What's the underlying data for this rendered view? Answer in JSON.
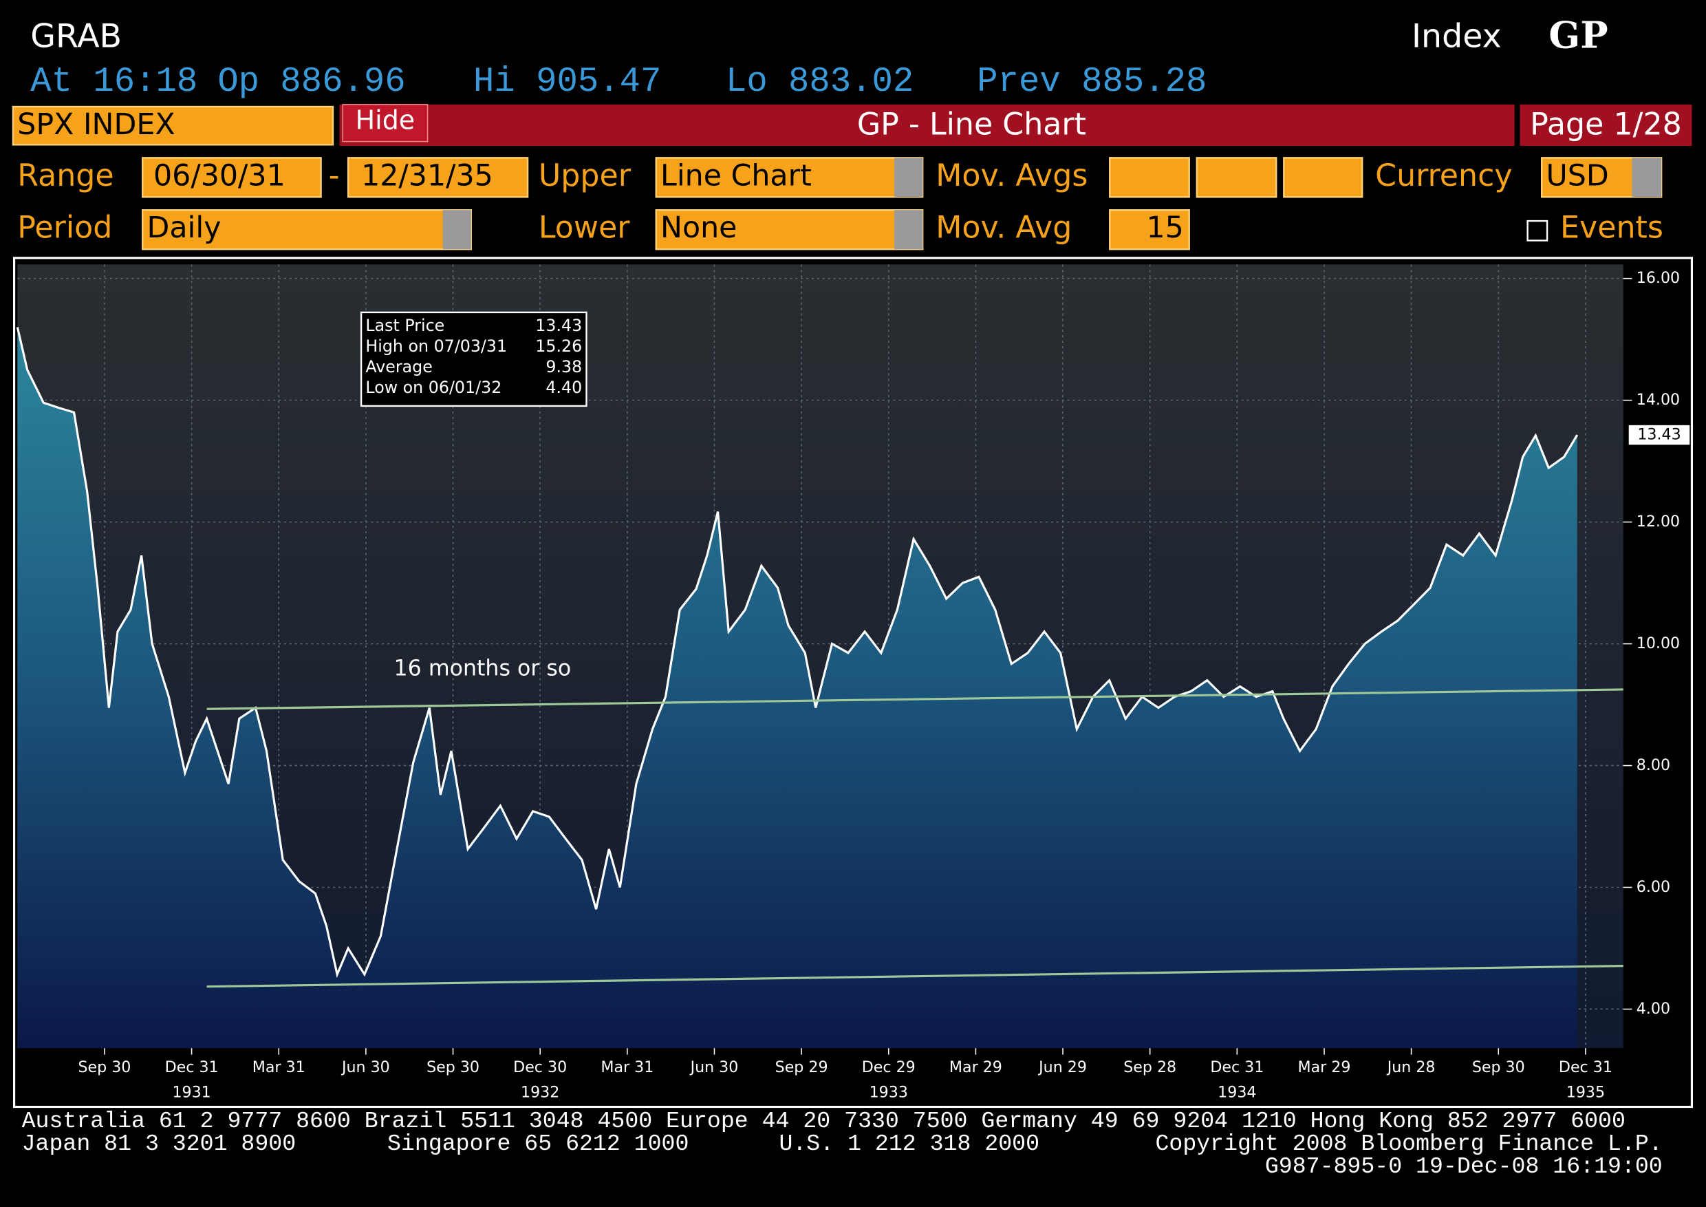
{
  "header": {
    "title": "GRAB",
    "index_label": "Index",
    "function": "GP",
    "quote": [
      "At 16:18",
      "Op 886.96",
      "Hi 905.47",
      "Lo 883.02",
      "Prev 885.28"
    ]
  },
  "toolbar": {
    "security": "SPX INDEX",
    "hide": "Hide",
    "title": "GP - Line Chart",
    "page": "Page 1/28"
  },
  "form": {
    "range_label": "Range",
    "range_start": "06/30/31",
    "range_sep": "-",
    "range_end": "12/31/35",
    "upper_label": "Upper",
    "upper": "Line Chart",
    "mov_avgs_label": "Mov. Avgs",
    "currency_label": "Currency",
    "currency": "USD",
    "period_label": "Period",
    "period": "Daily",
    "lower_label": "Lower",
    "lower": "None",
    "mov_avg_label": "Mov. Avg",
    "mov_avg": "15",
    "events": "Events"
  },
  "chart_data": {
    "type": "line",
    "color": "#ffffff",
    "x": [
      0,
      0.34,
      0.9,
      1.46,
      1.95,
      2.4,
      2.77,
      3.15,
      3.45,
      3.9,
      4.27,
      4.64,
      5.21,
      5.77,
      6.14,
      6.52,
      6.89,
      7.27,
      7.64,
      8.2,
      8.58,
      9.14,
      9.7,
      10.26,
      10.64,
      11.01,
      11.39,
      11.95,
      12.51,
      13.07,
      13.63,
      14.19,
      14.57,
      14.94,
      15.51,
      16.07,
      16.63,
      17.19,
      17.75,
      18.31,
      18.88,
      19.44,
      19.93,
      20.37,
      20.75,
      21.31,
      21.87,
      22.32,
      22.81,
      23.37,
      23.75,
      24.12,
      24.49,
      25.06,
      25.62,
      26.18,
      26.55,
      27.12,
      27.49,
      28.05,
      28.61,
      29.18,
      29.74,
      30.3,
      30.86,
      31.42,
      31.99,
      32.55,
      33.11,
      33.67,
      34.23,
      34.79,
      35.36,
      35.92,
      36.48,
      37.04,
      37.6,
      38.16,
      38.73,
      39.29,
      39.85,
      40.41,
      40.97,
      41.54,
      42.1,
      42.66,
      43.22,
      43.6,
      44.16,
      44.72,
      45.28,
      45.84,
      46.4,
      46.97,
      47.53,
      48.09,
      48.65,
      49.21,
      49.78,
      50.34,
      50.9,
      51.46,
      51.84,
      52.28,
      52.73,
      53.26,
      53.71
    ],
    "values": [
      15.2,
      14.5,
      13.96,
      13.87,
      13.8,
      12.5,
      10.9,
      8.95,
      10.2,
      10.56,
      11.45,
      10.0,
      9.13,
      7.88,
      8.4,
      8.77,
      8.24,
      7.7,
      8.77,
      8.95,
      8.24,
      6.45,
      6.1,
      5.9,
      5.37,
      4.57,
      5.0,
      4.57,
      5.2,
      6.63,
      8.05,
      8.95,
      7.52,
      8.24,
      6.63,
      6.98,
      7.34,
      6.8,
      7.25,
      7.16,
      6.8,
      6.45,
      5.64,
      6.63,
      6.0,
      7.7,
      8.6,
      9.13,
      10.56,
      10.9,
      11.45,
      12.17,
      10.2,
      10.56,
      11.28,
      10.92,
      10.3,
      9.85,
      8.95,
      10.0,
      9.85,
      10.2,
      9.85,
      10.56,
      11.72,
      11.28,
      10.74,
      11.0,
      11.1,
      10.56,
      9.67,
      9.85,
      10.2,
      9.85,
      8.6,
      9.13,
      9.4,
      8.77,
      9.13,
      8.95,
      9.13,
      9.22,
      9.4,
      9.13,
      9.3,
      9.13,
      9.22,
      8.77,
      8.24,
      8.6,
      9.3,
      9.67,
      10.0,
      10.2,
      10.38,
      10.65,
      10.92,
      11.63,
      11.45,
      11.81,
      11.45,
      12.35,
      13.07,
      13.42,
      12.89,
      13.07,
      13.43
    ],
    "xlim": [
      0,
      55.3
    ],
    "ylim": [
      3.36,
      16.23
    ],
    "xticks": [
      {
        "value": 3,
        "label": "Sep 30"
      },
      {
        "value": 6,
        "label": "Dec 31"
      },
      {
        "value": 9,
        "label": "Mar 31"
      },
      {
        "value": 12,
        "label": "Jun 30"
      },
      {
        "value": 15,
        "label": "Sep 30"
      },
      {
        "value": 18,
        "label": "Dec 30"
      },
      {
        "value": 21,
        "label": "Mar 31"
      },
      {
        "value": 24,
        "label": "Jun 30"
      },
      {
        "value": 27,
        "label": "Sep 29"
      },
      {
        "value": 30,
        "label": "Dec 29"
      },
      {
        "value": 33,
        "label": "Mar 29"
      },
      {
        "value": 36,
        "label": "Jun 29"
      },
      {
        "value": 39,
        "label": "Sep 28"
      },
      {
        "value": 42,
        "label": "Dec 31"
      },
      {
        "value": 45,
        "label": "Mar 29"
      },
      {
        "value": 48,
        "label": "Jun 28"
      },
      {
        "value": 51,
        "label": "Sep 30"
      },
      {
        "value": 54,
        "label": "Dec 31"
      }
    ],
    "year_ticks": [
      {
        "value": 6,
        "label": "1931"
      },
      {
        "value": 18,
        "label": "1932"
      },
      {
        "value": 30,
        "label": "1933"
      },
      {
        "value": 42,
        "label": "1934"
      },
      {
        "value": 54,
        "label": "1935"
      }
    ],
    "yticks": [
      {
        "value": 4,
        "label": "4.00"
      },
      {
        "value": 6,
        "label": "6.00"
      },
      {
        "value": 8,
        "label": "8.00"
      },
      {
        "value": 10,
        "label": "10.00"
      },
      {
        "value": 12,
        "label": "12.00"
      },
      {
        "value": 14,
        "label": "14.00"
      },
      {
        "value": 16,
        "label": "16.00"
      }
    ],
    "grid": true,
    "last_label": "13.43",
    "trend_lines": [
      {
        "color": "#9fc89a",
        "x": [
          6.52,
          55.3
        ],
        "values": [
          8.93,
          9.25
        ]
      },
      {
        "color": "#9fc89a",
        "x": [
          6.52,
          55.3
        ],
        "values": [
          4.37,
          4.71
        ]
      }
    ],
    "annotation": "16 months or so",
    "stats": [
      [
        "Last Price",
        "13.43"
      ],
      [
        "High on 07/03/31",
        "15.26"
      ],
      [
        "Average",
        "9.38"
      ],
      [
        "Low on 06/01/32",
        "4.40"
      ]
    ]
  },
  "footer": {
    "line1": "Australia 61 2 9777 8600 Brazil 5511 3048 4500 Europe 44 20 7330 7500 Germany 49 69 9204 1210 Hong Kong 852 2977 6000",
    "japan": "Japan 81 3 3201 8900",
    "singapore": "Singapore 65 6212 1000",
    "us": "U.S. 1 212 318 2000",
    "copyright": "Copyright 2008 Bloomberg Finance L.P.",
    "id": "G987-895-0 19-Dec-08 16:19:00"
  }
}
